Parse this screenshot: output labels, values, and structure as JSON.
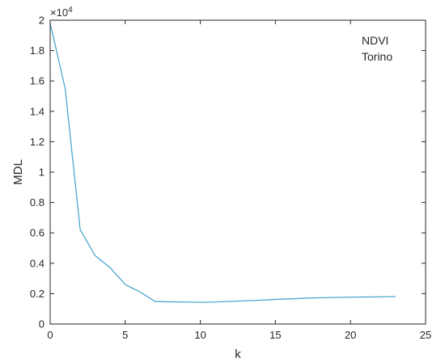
{
  "chart_data": {
    "type": "line",
    "xlabel": "k",
    "ylabel": "MDL",
    "exponent_label": "×10",
    "exponent_power": "4",
    "xlim": [
      0,
      25
    ],
    "ylim": [
      0,
      2
    ],
    "xticks": [
      "0",
      "5",
      "10",
      "15",
      "20",
      "25"
    ],
    "yticks": [
      "0",
      "0.2",
      "0.4",
      "0.6",
      "0.8",
      "1",
      "1.2",
      "1.4",
      "1.6",
      "1.8",
      "2"
    ],
    "annotation_lines": [
      "NDVI",
      "Torino"
    ],
    "grid": false,
    "series": [
      {
        "color": "#4da6d1",
        "x": [
          0,
          1,
          2,
          3,
          4,
          5,
          6,
          7,
          8,
          9,
          10,
          11,
          12,
          13,
          14,
          15,
          16,
          17,
          18,
          19,
          20,
          21,
          22,
          23
        ],
        "y": [
          1.98,
          1.55,
          0.62,
          0.45,
          0.37,
          0.26,
          0.21,
          0.148,
          0.146,
          0.145,
          0.143,
          0.145,
          0.149,
          0.153,
          0.157,
          0.162,
          0.166,
          0.17,
          0.173,
          0.175,
          0.177,
          0.178,
          0.179,
          0.18
        ]
      }
    ]
  }
}
